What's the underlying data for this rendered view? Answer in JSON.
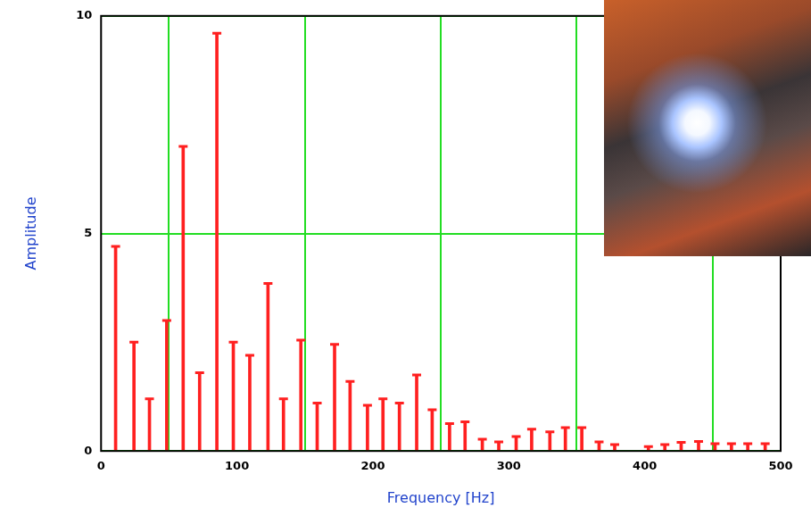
{
  "chart_data": {
    "type": "stem",
    "xlabel": "Frequency [Hz]",
    "ylabel": "Amplitude",
    "x": [
      10.7,
      24.2,
      35.6,
      48.3,
      60.4,
      72.5,
      85.2,
      97.3,
      109.4,
      122.8,
      134.2,
      147.0,
      159.0,
      171.8,
      183.2,
      196.0,
      207.4,
      219.5,
      232.2,
      243.6,
      256.4,
      267.8,
      280.5,
      292.6,
      305.4,
      316.8,
      330.2,
      341.6,
      353.7,
      366.4,
      377.9,
      402.7,
      414.8,
      426.8,
      439.6,
      451.7,
      463.8,
      475.8,
      488.6
    ],
    "values": [
      4.7,
      2.5,
      1.2,
      3.0,
      7.0,
      1.8,
      9.6,
      2.5,
      2.2,
      3.85,
      1.2,
      2.55,
      1.1,
      2.45,
      1.6,
      1.05,
      1.2,
      1.1,
      1.75,
      0.95,
      0.63,
      0.67,
      0.27,
      0.21,
      0.33,
      0.5,
      0.44,
      0.54,
      0.54,
      0.21,
      0.15,
      0.1,
      0.15,
      0.2,
      0.22,
      0.17,
      0.17,
      0.17,
      0.17
    ],
    "color": "#ff2020",
    "marker": "dash",
    "xlim": [
      0,
      500
    ],
    "xticks": [
      0,
      100,
      200,
      300,
      400,
      500
    ],
    "ylim": [
      0,
      10
    ],
    "yticks": [
      0,
      5,
      10
    ],
    "grid": true
  }
}
